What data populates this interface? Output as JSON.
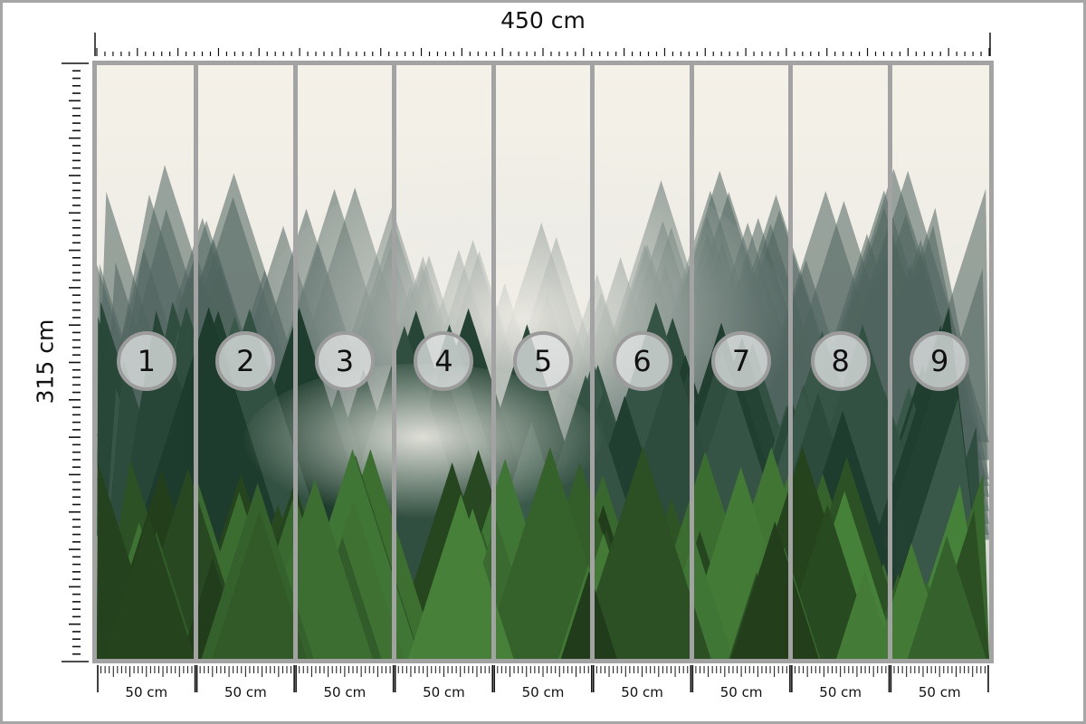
{
  "dimensions": {
    "width_label": "450 cm",
    "height_label": "315 cm"
  },
  "panels": [
    {
      "number": "1",
      "width_label": "50 cm"
    },
    {
      "number": "2",
      "width_label": "50 cm"
    },
    {
      "number": "3",
      "width_label": "50 cm"
    },
    {
      "number": "4",
      "width_label": "50 cm"
    },
    {
      "number": "5",
      "width_label": "50 cm"
    },
    {
      "number": "6",
      "width_label": "50 cm"
    },
    {
      "number": "7",
      "width_label": "50 cm"
    },
    {
      "number": "8",
      "width_label": "50 cm"
    },
    {
      "number": "9",
      "width_label": "50 cm"
    }
  ],
  "image": {
    "subject": "misty pine forest",
    "colors": {
      "sky": "#f3f1ea",
      "forest_dark": "#1d3a2a",
      "forest_light": "#4f7a2e",
      "frame": "#a3a3a3"
    }
  }
}
